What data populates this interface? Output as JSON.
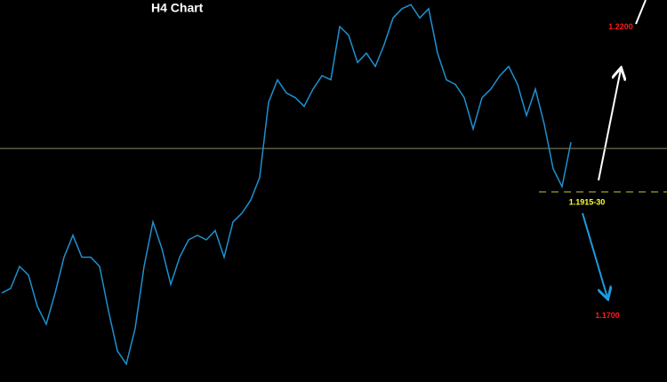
{
  "chart_data": {
    "type": "line",
    "title": "H4 Chart",
    "values": [
      1.174,
      1.1748,
      1.1786,
      1.1771,
      1.1717,
      1.1686,
      1.174,
      1.1802,
      1.184,
      1.1802,
      1.1802,
      1.1786,
      1.1709,
      1.164,
      1.1617,
      1.1679,
      1.1786,
      1.1863,
      1.1817,
      1.1755,
      1.1802,
      1.1832,
      1.184,
      1.1832,
      1.1848,
      1.1802,
      1.1863,
      1.1878,
      1.1901,
      1.194,
      1.207,
      1.2109,
      1.2086,
      1.2078,
      1.2063,
      1.2093,
      1.2116,
      1.2109,
      1.2201,
      1.2186,
      1.2139,
      1.2155,
      1.2132,
      1.217,
      1.2216,
      1.2232,
      1.2239,
      1.2216,
      1.2232,
      1.2155,
      1.2109,
      1.2101,
      1.2078,
      1.2024,
      1.2078,
      1.2093,
      1.2116,
      1.2132,
      1.2101,
      1.2047,
      1.2093,
      1.2032,
      1.1955,
      1.1924,
      1.2001
    ],
    "color": "#1e90d0",
    "ylim": [
      1.1586,
      1.2247
    ],
    "level_line": 1.199,
    "annotations": [
      {
        "text": "1.2200",
        "value": 1.22,
        "color": "#ff1a1a"
      },
      {
        "text": "1.1915-30",
        "value": 1.1915,
        "color": "#ffff33"
      },
      {
        "text": "1.1700",
        "value": 1.17,
        "color": "#ff1a1a"
      }
    ]
  }
}
